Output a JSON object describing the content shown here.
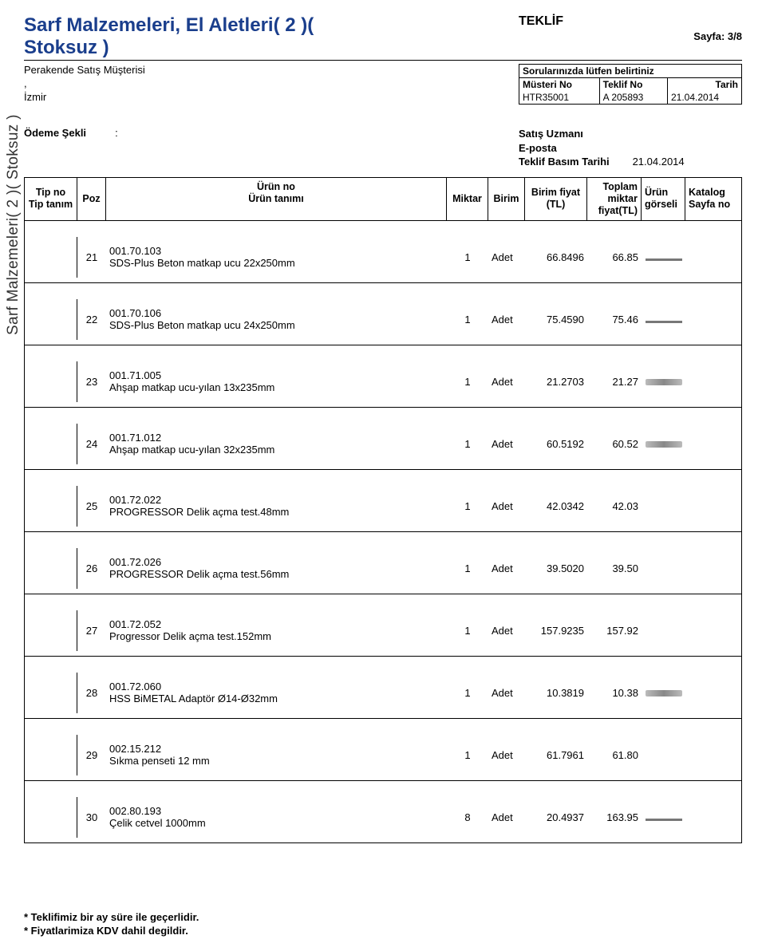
{
  "header": {
    "title_line1": "Sarf Malzemeleri, El Aletleri( 2 )(",
    "title_line2": "Stoksuz )",
    "teklif": "TEKLİF",
    "page_label": "Sayfa: 3/8",
    "customer_type": "Perakende Satış Müşterisi",
    "comma": ",",
    "city": "İzmir"
  },
  "info_box": {
    "note": "Sorularınızda lütfen belirtiniz",
    "h_musteri": "Müsteri No",
    "h_teklif": "Teklif No",
    "h_tarih": "Tarih",
    "v_musteri": "HTR35001",
    "v_teklif": "A 205893",
    "v_tarih": "21.04.2014"
  },
  "meta": {
    "odeme_label": "Ödeme Şekli",
    "odeme_sep": ":",
    "satis_uzmani": "Satış Uzmanı",
    "eposta": "E-posta",
    "basim_label": "Teklif Basım Tarihi",
    "basim_value": "21.04.2014"
  },
  "columns": {
    "tip1": "Tip no",
    "tip2": "Tip tanım",
    "poz": "Poz",
    "urun1": "Ürün no",
    "urun2": "Ürün tanımı",
    "miktar": "Miktar",
    "birim": "Birim",
    "bf1": "Birim fiyat",
    "bf2": "(TL)",
    "top1": "Toplam",
    "top2": "miktar",
    "top3": "fiyat(TL)",
    "gor1": "Ürün",
    "gor2": "görseli",
    "kat1": "Katalog",
    "kat2": "Sayfa no"
  },
  "vertical_label": "Sarf Malzemeleri( 2 )( Stoksuz )",
  "rows": [
    {
      "poz": "21",
      "code": "001.70.103",
      "desc": "SDS-Plus Beton matkap ucu 22x250mm",
      "miktar": "1",
      "birim": "Adet",
      "bf": "66.8496",
      "top": "66.85",
      "img": "thin"
    },
    {
      "poz": "22",
      "code": "001.70.106",
      "desc": "SDS-Plus Beton matkap ucu 24x250mm",
      "miktar": "1",
      "birim": "Adet",
      "bf": "75.4590",
      "top": "75.46",
      "img": "thin"
    },
    {
      "poz": "23",
      "code": "001.71.005",
      "desc": "Ahşap matkap ucu-yılan 13x235mm",
      "miktar": "1",
      "birim": "Adet",
      "bf": "21.2703",
      "top": "21.27",
      "img": "ph"
    },
    {
      "poz": "24",
      "code": "001.71.012",
      "desc": "Ahşap matkap ucu-yılan 32x235mm",
      "miktar": "1",
      "birim": "Adet",
      "bf": "60.5192",
      "top": "60.52",
      "img": "ph"
    },
    {
      "poz": "25",
      "code": "001.72.022",
      "desc": "PROGRESSOR Delik açma test.48mm",
      "miktar": "1",
      "birim": "Adet",
      "bf": "42.0342",
      "top": "42.03",
      "img": ""
    },
    {
      "poz": "26",
      "code": "001.72.026",
      "desc": "PROGRESSOR Delik açma test.56mm",
      "miktar": "1",
      "birim": "Adet",
      "bf": "39.5020",
      "top": "39.50",
      "img": ""
    },
    {
      "poz": "27",
      "code": "001.72.052",
      "desc": "Progressor Delik açma test.152mm",
      "miktar": "1",
      "birim": "Adet",
      "bf": "157.9235",
      "top": "157.92",
      "img": ""
    },
    {
      "poz": "28",
      "code": "001.72.060",
      "desc": "HSS BiMETAL Adaptör Ø14-Ø32mm",
      "miktar": "1",
      "birim": "Adet",
      "bf": "10.3819",
      "top": "10.38",
      "img": "ph"
    },
    {
      "poz": "29",
      "code": "002.15.212",
      "desc": "Sıkma penseti 12 mm",
      "miktar": "1",
      "birim": "Adet",
      "bf": "61.7961",
      "top": "61.80",
      "img": ""
    },
    {
      "poz": "30",
      "code": "002.80.193",
      "desc": "Çelik cetvel 1000mm",
      "miktar": "8",
      "birim": "Adet",
      "bf": "20.4937",
      "top": "163.95",
      "img": "thin"
    }
  ],
  "footer": {
    "line1": "* Teklifimiz bir ay süre ile geçerlidir.",
    "line2": "* Fiyatlarimiza KDV dahil degildir."
  }
}
